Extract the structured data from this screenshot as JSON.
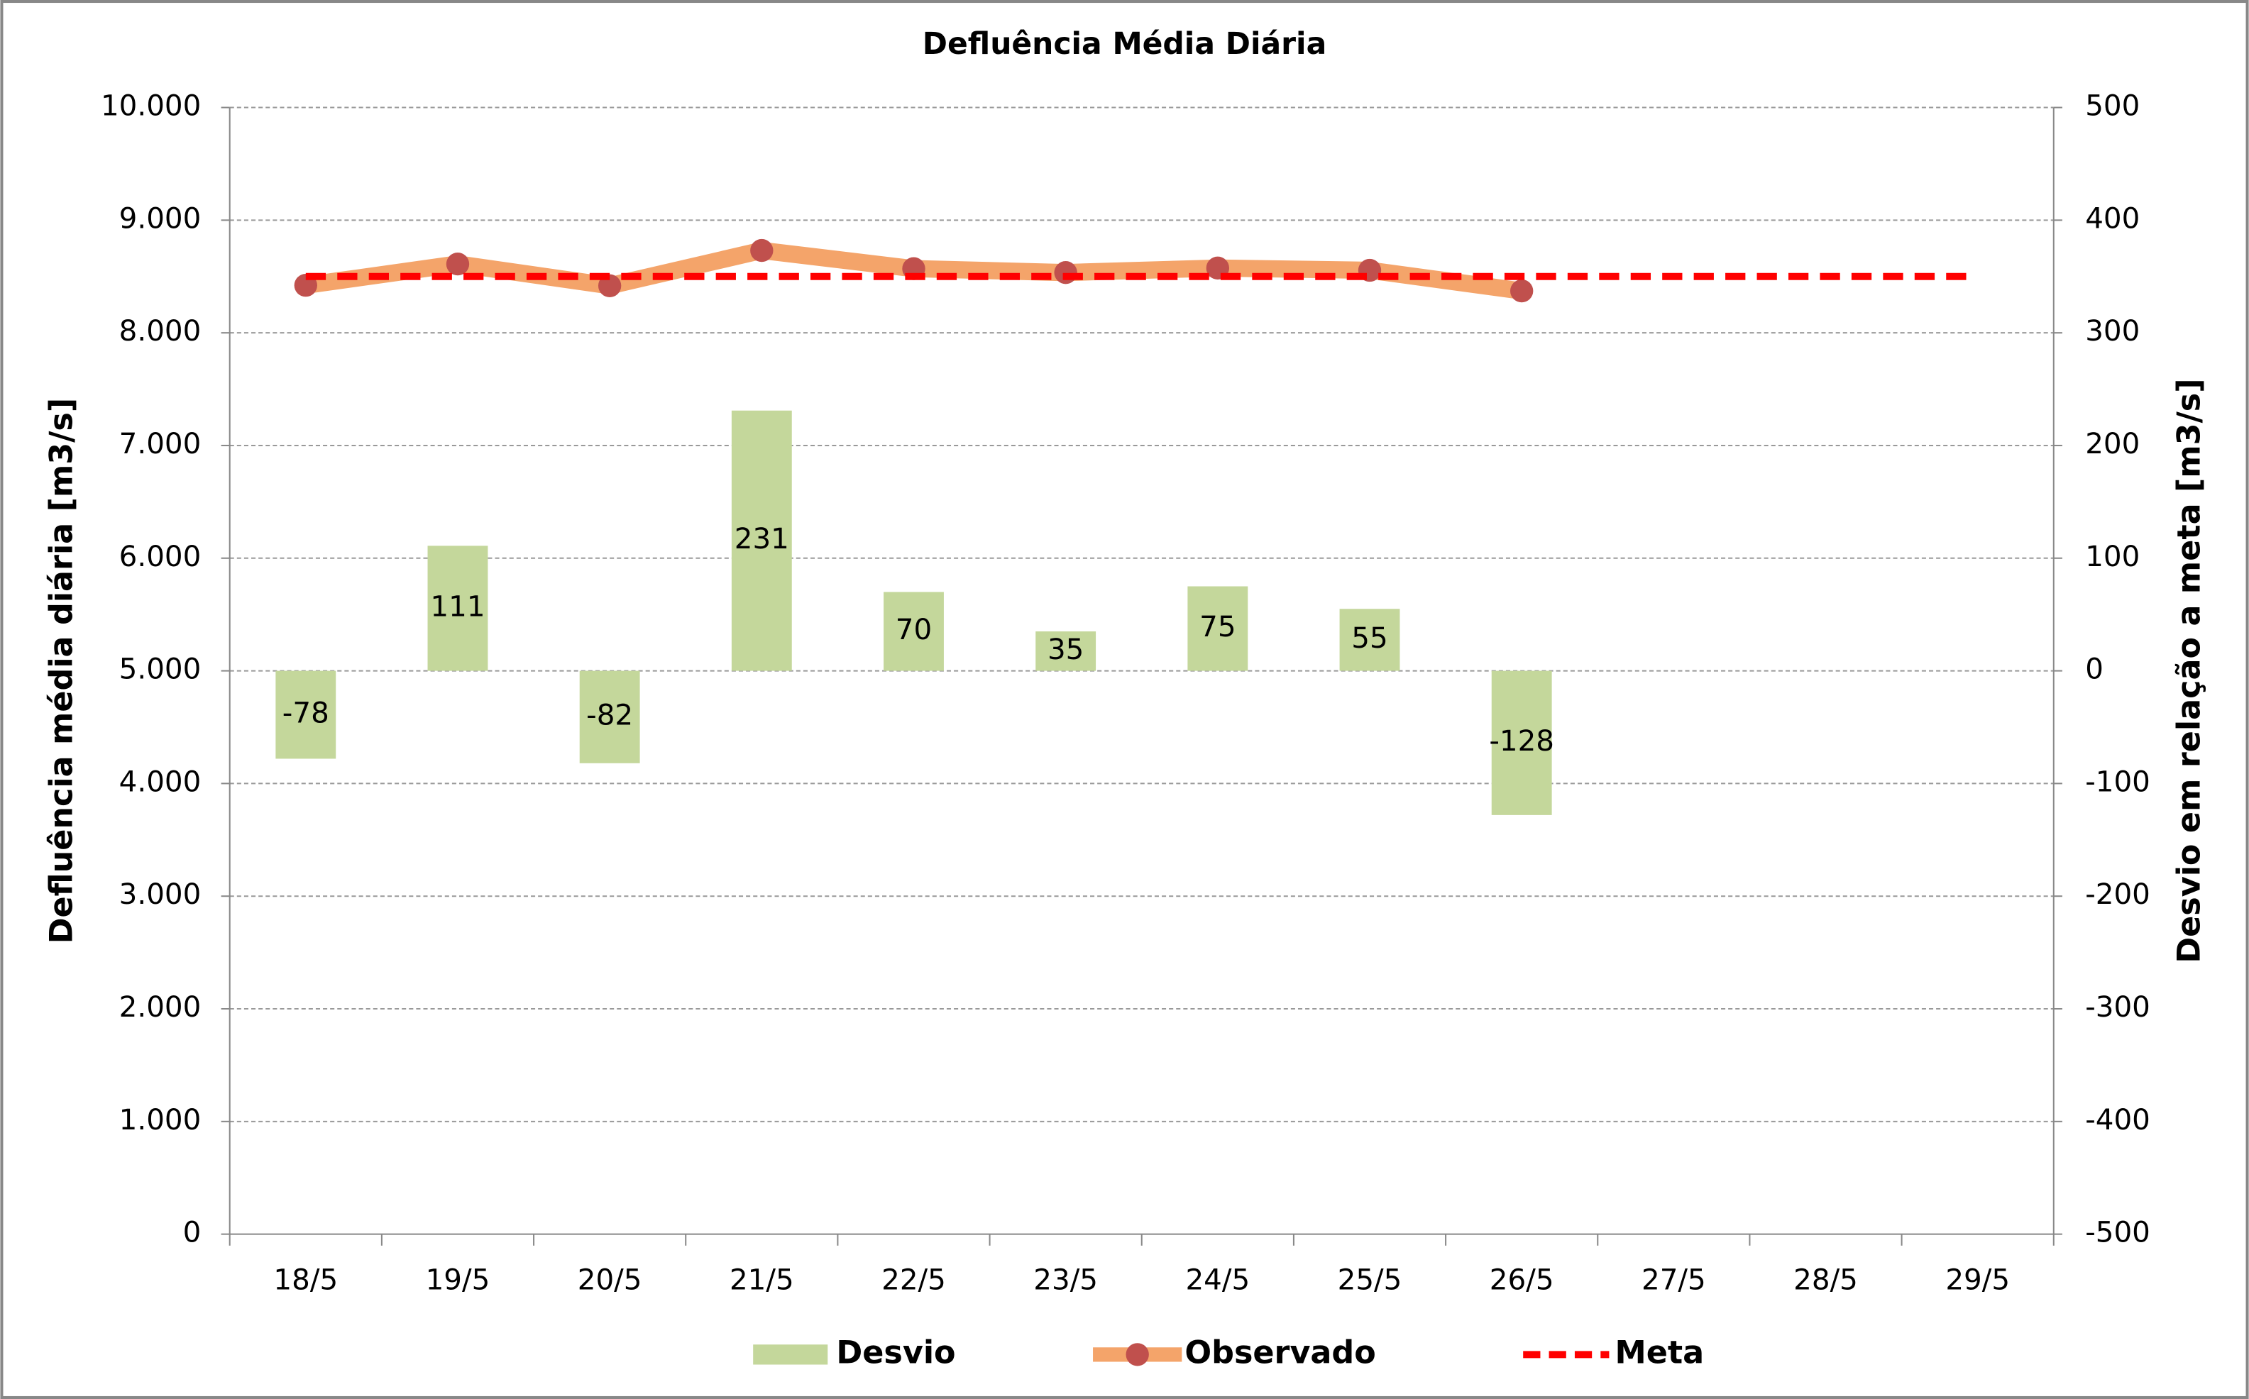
{
  "chart_data": {
    "type": "bar-line",
    "title": "Defluência Média Diária",
    "y_label": "Defluência média diária [m3/s]",
    "y2_label": "Desvio em relação a meta [m3/s]",
    "categories": [
      "18/5",
      "19/5",
      "20/5",
      "21/5",
      "22/5",
      "23/5",
      "24/5",
      "25/5",
      "26/5",
      "27/5",
      "28/5",
      "29/5"
    ],
    "ylim": [
      0,
      10000
    ],
    "yticks": [
      0,
      {
        "value": 1000,
        "label": "1.000"
      },
      {
        "value": 2000,
        "label": "2.000"
      },
      {
        "value": 3000,
        "label": "3.000"
      },
      {
        "value": 4000,
        "label": "4.000"
      },
      {
        "value": 5000,
        "label": "5.000"
      },
      {
        "value": 6000,
        "label": "6.000"
      },
      {
        "value": 7000,
        "label": "7.000"
      },
      {
        "value": 8000,
        "label": "8.000"
      },
      {
        "value": 9000,
        "label": "9.000"
      },
      {
        "value": 10000,
        "label": "10.000"
      }
    ],
    "y2lim": [
      -500,
      500
    ],
    "y2ticks": [
      -500,
      -400,
      -300,
      -200,
      -100,
      0,
      100,
      200,
      300,
      400,
      500
    ],
    "grid": true,
    "legend": "bottom",
    "series": [
      {
        "name": "Desvio",
        "type": "bar",
        "axis": "y2",
        "color": "#c4d79b",
        "values": [
          -78,
          111,
          -82,
          231,
          70,
          35,
          75,
          55,
          -128,
          null,
          null,
          null
        ]
      },
      {
        "name": "Observado",
        "type": "line",
        "color": "#f4a46a",
        "marker_color": "#c0504d",
        "values": [
          8422,
          8611,
          8418,
          8731,
          8570,
          8535,
          8575,
          8555,
          8372,
          null,
          null,
          null
        ]
      },
      {
        "name": "Meta",
        "type": "dashed",
        "color": "#ff0000",
        "values": [
          8500,
          8500,
          8500,
          8500,
          8500,
          8500,
          8500,
          8500,
          8500,
          8500,
          8500,
          8500
        ]
      }
    ]
  }
}
